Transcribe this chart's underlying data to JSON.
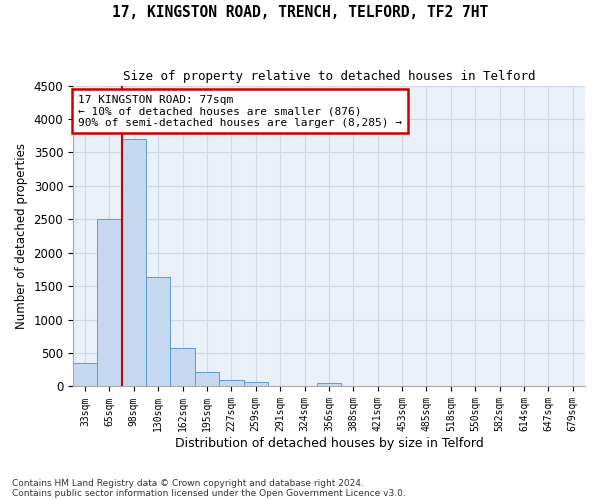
{
  "title": "17, KINGSTON ROAD, TRENCH, TELFORD, TF2 7HT",
  "subtitle": "Size of property relative to detached houses in Telford",
  "xlabel": "Distribution of detached houses by size in Telford",
  "ylabel": "Number of detached properties",
  "categories": [
    "33sqm",
    "65sqm",
    "98sqm",
    "130sqm",
    "162sqm",
    "195sqm",
    "227sqm",
    "259sqm",
    "291sqm",
    "324sqm",
    "356sqm",
    "388sqm",
    "421sqm",
    "453sqm",
    "485sqm",
    "518sqm",
    "550sqm",
    "582sqm",
    "614sqm",
    "647sqm",
    "679sqm"
  ],
  "values": [
    350,
    2500,
    3700,
    1640,
    580,
    220,
    100,
    60,
    5,
    5,
    50,
    5,
    5,
    0,
    0,
    0,
    0,
    0,
    0,
    0,
    0
  ],
  "bar_color": "#c5d8f0",
  "bar_edge_color": "#5b9bd5",
  "annotation_title": "17 KINGSTON ROAD: 77sqm",
  "annotation_line1": "← 10% of detached houses are smaller (876)",
  "annotation_line2": "90% of semi-detached houses are larger (8,285) →",
  "annotation_box_color": "#ffffff",
  "annotation_box_edge": "#cc0000",
  "vline_color": "#cc0000",
  "ylim": [
    0,
    4500
  ],
  "yticks": [
    0,
    500,
    1000,
    1500,
    2000,
    2500,
    3000,
    3500,
    4000,
    4500
  ],
  "grid_color": "#d0d8e8",
  "background_color": "#eaf0f8",
  "footnote1": "Contains HM Land Registry data © Crown copyright and database right 2024.",
  "footnote2": "Contains public sector information licensed under the Open Government Licence v3.0.",
  "title_fontsize": 10.5,
  "subtitle_fontsize": 9
}
